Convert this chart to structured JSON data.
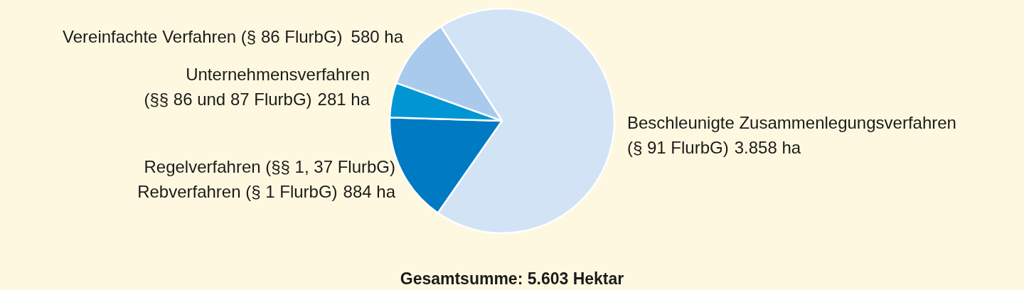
{
  "chart_data": {
    "type": "pie",
    "title": "Gesamtsumme: 5.603 Hektar",
    "categories": [
      "Beschleunigte Zusammenlegungsverfahren\n(§ 91 FlurbG)",
      "Regelverfahren (§§ 1, 37 FlurbG)\nRebverfahren (§ 1 FlurbG)",
      "Unternehmensverfahren\n(§§ 86 und 87 FlurbG)",
      "Vereinfachte Verfahren (§ 86 FlurbG)"
    ],
    "values": [
      3858,
      884,
      281,
      580
    ],
    "value_labels": [
      "3.858 ha",
      "884 ha",
      "281 ha",
      "580 ha"
    ],
    "colors": [
      "#d2e3f5",
      "#007ac3",
      "#0096d4",
      "#a9caed"
    ]
  }
}
